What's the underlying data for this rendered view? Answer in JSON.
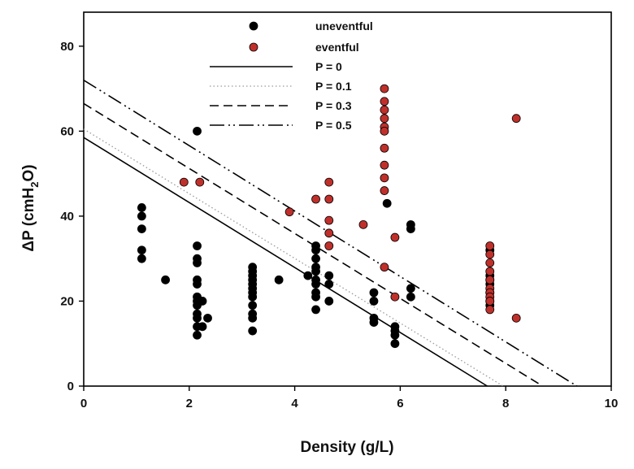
{
  "chart_data": {
    "type": "scatter",
    "xlabel": "Density (g/L)",
    "ylabel": {
      "main": "ΔP (cmH",
      "sub": "2",
      "tail": "O)"
    },
    "xlim": [
      0,
      10
    ],
    "ylim": [
      0,
      88
    ],
    "xticks": [
      0,
      2,
      4,
      6,
      8,
      10
    ],
    "yticks": [
      0,
      20,
      40,
      60,
      80
    ],
    "xtick_labels": [
      "0",
      "2",
      "4",
      "6",
      "8",
      "10"
    ],
    "ytick_labels": [
      "0",
      "20",
      "40",
      "60",
      "80"
    ],
    "grid": false,
    "legend_position": "top-center",
    "series": [
      {
        "name": "uneventful",
        "kind": "points",
        "color": "#000000",
        "points": [
          [
            1.1,
            42
          ],
          [
            1.1,
            40
          ],
          [
            1.1,
            37
          ],
          [
            1.1,
            32
          ],
          [
            1.1,
            30
          ],
          [
            1.55,
            25
          ],
          [
            2.15,
            60
          ],
          [
            2.15,
            33
          ],
          [
            2.15,
            30
          ],
          [
            2.15,
            29
          ],
          [
            2.15,
            25
          ],
          [
            2.15,
            24
          ],
          [
            2.15,
            21
          ],
          [
            2.15,
            20
          ],
          [
            2.15,
            19
          ],
          [
            2.15,
            17
          ],
          [
            2.15,
            16
          ],
          [
            2.15,
            14
          ],
          [
            2.15,
            12
          ],
          [
            2.25,
            20
          ],
          [
            2.25,
            14
          ],
          [
            2.35,
            16
          ],
          [
            3.2,
            28
          ],
          [
            3.2,
            27
          ],
          [
            3.2,
            26
          ],
          [
            3.2,
            25
          ],
          [
            3.2,
            24
          ],
          [
            3.2,
            23
          ],
          [
            3.2,
            22
          ],
          [
            3.2,
            21
          ],
          [
            3.2,
            19
          ],
          [
            3.2,
            17
          ],
          [
            3.2,
            16
          ],
          [
            3.2,
            13
          ],
          [
            3.7,
            25
          ],
          [
            4.25,
            26
          ],
          [
            4.4,
            33
          ],
          [
            4.4,
            32
          ],
          [
            4.4,
            30
          ],
          [
            4.4,
            28
          ],
          [
            4.4,
            27
          ],
          [
            4.4,
            25
          ],
          [
            4.4,
            24
          ],
          [
            4.4,
            22
          ],
          [
            4.4,
            21
          ],
          [
            4.4,
            18
          ],
          [
            4.65,
            26
          ],
          [
            4.65,
            24
          ],
          [
            4.65,
            20
          ],
          [
            5.5,
            22
          ],
          [
            5.5,
            20
          ],
          [
            5.5,
            16
          ],
          [
            5.5,
            15
          ],
          [
            5.75,
            43
          ],
          [
            5.9,
            14
          ],
          [
            5.9,
            13
          ],
          [
            5.9,
            12
          ],
          [
            5.9,
            10
          ],
          [
            6.2,
            38
          ],
          [
            6.2,
            37
          ],
          [
            6.2,
            23
          ],
          [
            6.2,
            21
          ],
          [
            7.7,
            32
          ],
          [
            7.7,
            26
          ],
          [
            7.7,
            25
          ],
          [
            7.7,
            24
          ],
          [
            7.7,
            22
          ],
          [
            7.7,
            20
          ],
          [
            7.7,
            19
          ]
        ]
      },
      {
        "name": "eventful",
        "kind": "points",
        "color": "#c0302b",
        "points": [
          [
            1.9,
            48
          ],
          [
            2.2,
            48
          ],
          [
            3.9,
            41
          ],
          [
            4.4,
            44
          ],
          [
            4.65,
            48
          ],
          [
            4.65,
            44
          ],
          [
            4.65,
            39
          ],
          [
            4.65,
            36
          ],
          [
            4.65,
            33
          ],
          [
            5.3,
            38
          ],
          [
            5.7,
            70
          ],
          [
            5.7,
            67
          ],
          [
            5.7,
            65
          ],
          [
            5.7,
            63
          ],
          [
            5.7,
            61
          ],
          [
            5.7,
            60
          ],
          [
            5.7,
            56
          ],
          [
            5.7,
            52
          ],
          [
            5.7,
            49
          ],
          [
            5.7,
            46
          ],
          [
            5.7,
            28
          ],
          [
            5.9,
            35
          ],
          [
            5.9,
            21
          ],
          [
            7.7,
            33
          ],
          [
            7.7,
            31
          ],
          [
            7.7,
            29
          ],
          [
            7.7,
            27
          ],
          [
            7.7,
            25
          ],
          [
            7.7,
            23
          ],
          [
            7.7,
            22
          ],
          [
            7.7,
            21
          ],
          [
            7.7,
            20
          ],
          [
            7.7,
            18
          ],
          [
            8.2,
            63
          ],
          [
            8.2,
            16
          ]
        ]
      },
      {
        "name": "P = 0",
        "kind": "line",
        "color": "#000000",
        "dash": "solid",
        "points": [
          [
            0,
            58.5
          ],
          [
            7.65,
            0
          ]
        ]
      },
      {
        "name": "P = 0.1",
        "kind": "line",
        "color": "#9a9a9a",
        "dash": "dotted",
        "points": [
          [
            0,
            60.5
          ],
          [
            7.95,
            0
          ]
        ]
      },
      {
        "name": "P = 0.3",
        "kind": "line",
        "color": "#000000",
        "dash": "dashed",
        "points": [
          [
            0,
            66.5
          ],
          [
            8.7,
            0
          ]
        ]
      },
      {
        "name": "P = 0.5",
        "kind": "line",
        "color": "#000000",
        "dash": "dashdotdot",
        "points": [
          [
            0,
            72
          ],
          [
            9.35,
            0
          ]
        ]
      }
    ]
  }
}
